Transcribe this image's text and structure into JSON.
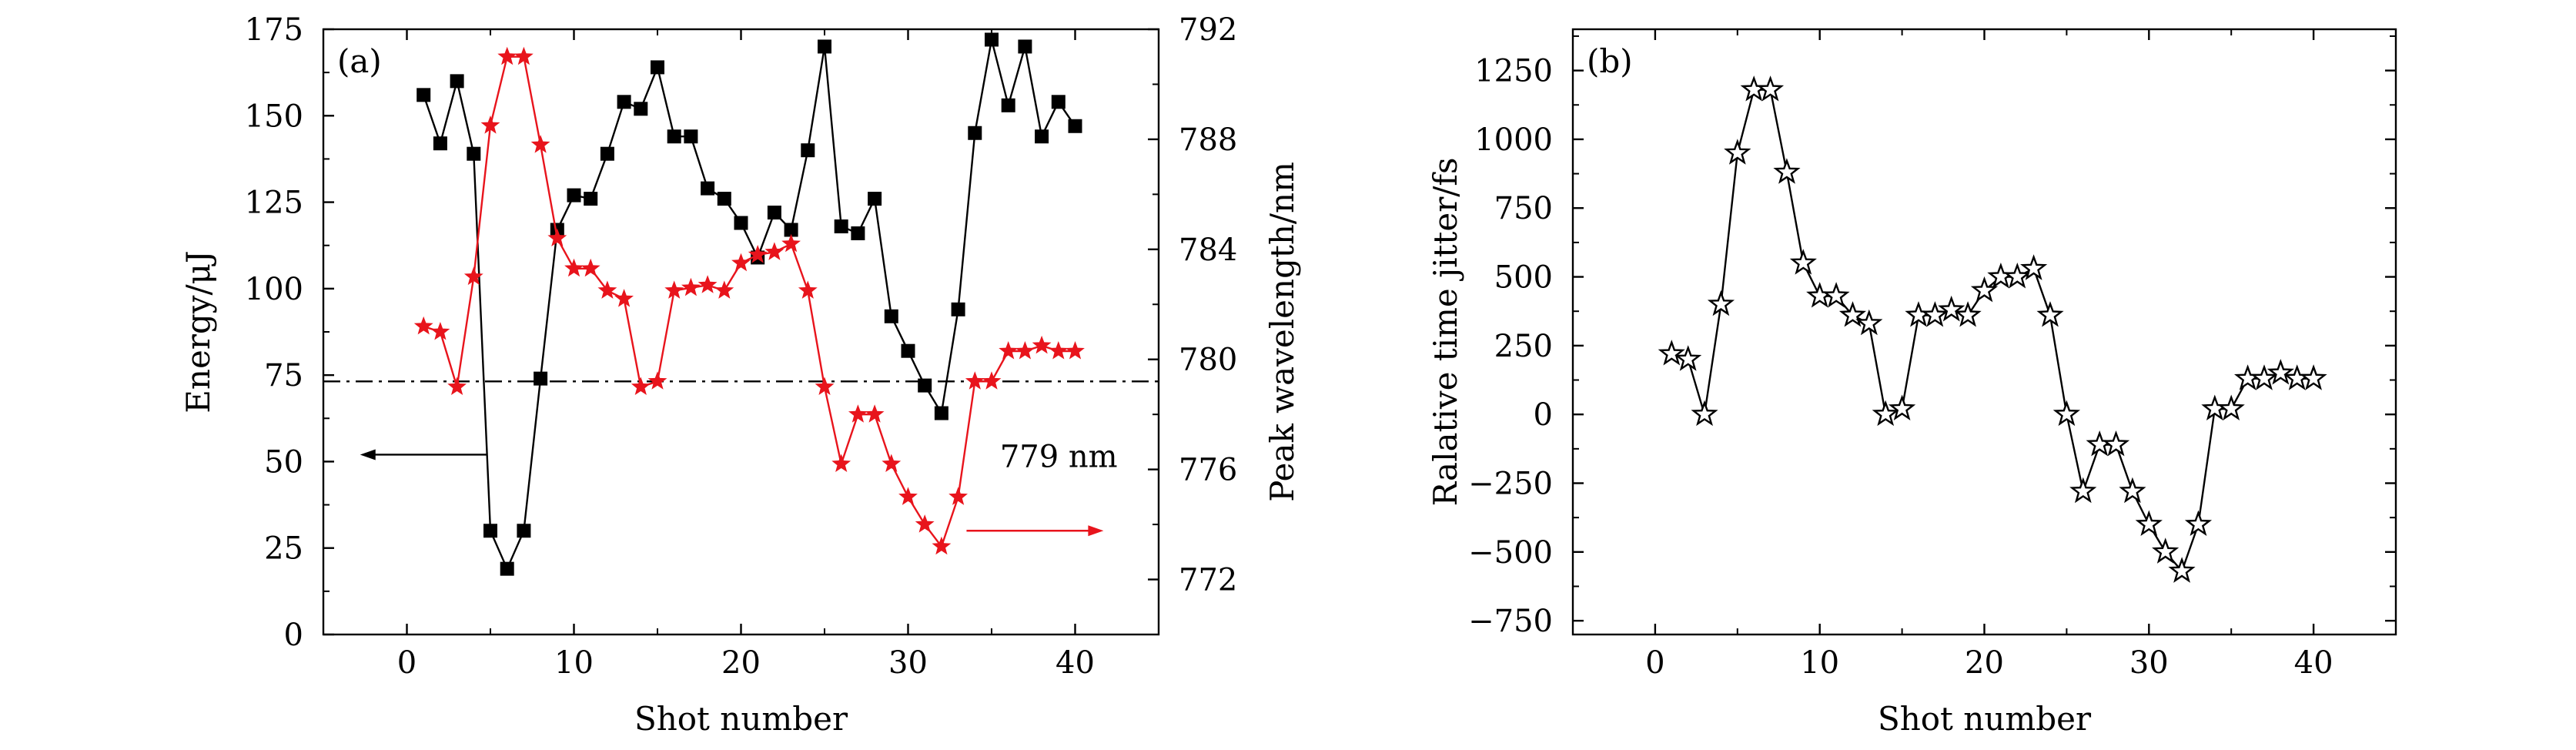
{
  "colors": {
    "black": "#000000",
    "red": "#e8141c",
    "background": "#ffffff"
  },
  "chart_data": [
    {
      "panel_label": "(a)",
      "type": "line",
      "xlabel": "Shot number",
      "ylabel_left": "Energy/μJ",
      "ylabel_right": "Peak wavelength/nm",
      "xlim": [
        -5,
        45
      ],
      "ylim_left": [
        0,
        175
      ],
      "ylim_right": [
        770,
        792
      ],
      "xticks": [
        "0",
        "10",
        "20",
        "30",
        "40"
      ],
      "yticks_left": [
        "0",
        "25",
        "50",
        "75",
        "100",
        "125",
        "150",
        "175"
      ],
      "yticks_right": [
        "772",
        "776",
        "780",
        "784",
        "788",
        "792"
      ],
      "reference_line": {
        "axis": "right",
        "value": 779.2,
        "label": "779 nm",
        "style": "dash-dot"
      },
      "series": [
        {
          "name": "Energy",
          "axis": "left",
          "marker": "square",
          "color": "#000000",
          "x": [
            1,
            2,
            3,
            4,
            5,
            6,
            7,
            8,
            9,
            10,
            11,
            12,
            13,
            14,
            15,
            16,
            17,
            18,
            19,
            20,
            21,
            22,
            23,
            24,
            25,
            26,
            27,
            28,
            29,
            30,
            31,
            32,
            33,
            34,
            35,
            36,
            37,
            38,
            39,
            40
          ],
          "values": [
            156,
            142,
            160,
            139,
            30,
            19,
            30,
            74,
            117,
            127,
            126,
            139,
            154,
            152,
            164,
            144,
            144,
            129,
            126,
            119,
            109,
            122,
            117,
            140,
            170,
            118,
            116,
            126,
            92,
            82,
            72,
            64,
            94,
            145,
            172,
            153,
            170,
            144,
            154,
            147
          ]
        },
        {
          "name": "Peak wavelength",
          "axis": "right",
          "marker": "star",
          "color": "#e8141c",
          "x": [
            1,
            2,
            3,
            4,
            5,
            6,
            7,
            8,
            9,
            10,
            11,
            12,
            13,
            14,
            15,
            16,
            17,
            18,
            19,
            20,
            21,
            22,
            23,
            24,
            25,
            26,
            27,
            28,
            29,
            30,
            31,
            32,
            33,
            34,
            35,
            36,
            37,
            38,
            39,
            40
          ],
          "values": [
            781.2,
            781.0,
            779.0,
            783.0,
            788.5,
            791.0,
            791.0,
            787.8,
            784.4,
            783.3,
            783.3,
            782.5,
            782.2,
            779.0,
            779.2,
            782.5,
            782.6,
            782.7,
            782.5,
            783.5,
            783.8,
            783.9,
            784.2,
            782.5,
            779.0,
            776.2,
            778.0,
            778.0,
            776.2,
            775.0,
            774.0,
            773.2,
            775.0,
            779.2,
            779.2,
            780.3,
            780.3,
            780.5,
            780.3,
            780.3
          ]
        }
      ],
      "arrows": [
        {
          "points_to": "left axis",
          "y_axis": "left",
          "y": 52,
          "x_from": 4.8,
          "x_to": -2.8
        },
        {
          "points_to": "right axis",
          "y_axis": "left",
          "y": 30,
          "x_from": 33.5,
          "x_to": 41.7
        }
      ]
    },
    {
      "panel_label": "(b)",
      "type": "line",
      "xlabel": "Shot number",
      "ylabel": "Ralative time jitter/fs",
      "xlim": [
        -5,
        45
      ],
      "ylim": [
        -800,
        1400
      ],
      "xticks": [
        "0",
        "10",
        "20",
        "30",
        "40"
      ],
      "yticks": [
        "−750",
        "−500",
        "−250",
        "0",
        "250",
        "500",
        "750",
        "1000",
        "1250"
      ],
      "series": [
        {
          "name": "Relative time jitter",
          "marker": "hollow-star",
          "color": "#000000",
          "x": [
            1,
            2,
            3,
            4,
            5,
            6,
            7,
            8,
            9,
            10,
            11,
            12,
            13,
            14,
            15,
            16,
            17,
            18,
            19,
            20,
            21,
            22,
            23,
            24,
            25,
            26,
            27,
            28,
            29,
            30,
            31,
            32,
            33,
            34,
            35,
            36,
            37,
            38,
            39,
            40
          ],
          "values": [
            220,
            200,
            0,
            400,
            950,
            1180,
            1180,
            880,
            550,
            430,
            430,
            360,
            330,
            0,
            20,
            360,
            360,
            380,
            360,
            450,
            500,
            500,
            530,
            360,
            0,
            -280,
            -110,
            -110,
            -280,
            -400,
            -500,
            -570,
            -400,
            20,
            20,
            130,
            130,
            150,
            130,
            130
          ]
        }
      ]
    }
  ]
}
